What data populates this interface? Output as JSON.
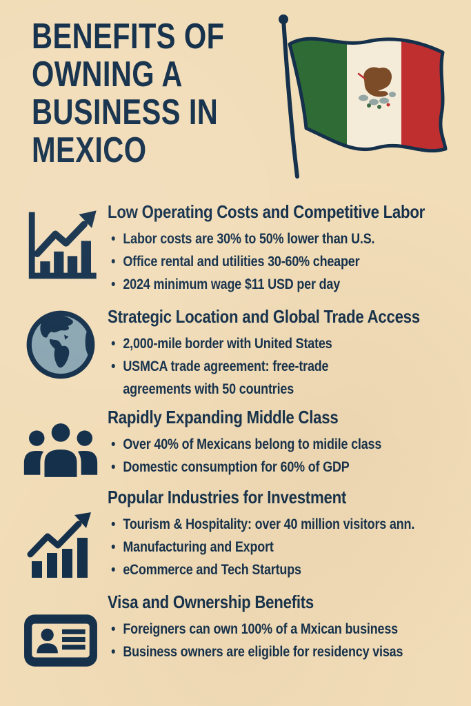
{
  "colors": {
    "background": "#f2ddb9",
    "navy": "#14304b",
    "flag_green": "#2e6b35",
    "flag_red": "#c02f2f",
    "flag_white": "#f4ecd9",
    "eagle_brown": "#7c4b28",
    "wreath_gray": "#93a6a4",
    "wreath_green": "#3d6b44",
    "globe_ocean": "#8ba6b2"
  },
  "title": {
    "lines": [
      "BENEFITS OF",
      "OWNING A",
      "BUSINESS IN",
      "MEXICO"
    ]
  },
  "flag": {
    "name": "mexico-flag"
  },
  "sections": [
    {
      "icon": "bar-chart-axis-growth-icon",
      "heading": "Low Operating Costs and Competitive Labor",
      "bullets": [
        "Labor costs are 30% to 50% lower than U.S.",
        "Office rental and utilities 30-60% cheaper",
        "2024 minimum wage $11 USD per day"
      ]
    },
    {
      "icon": "globe-icon",
      "heading": "Strategic Location and Global Trade Access",
      "bullets": [
        "2,000-mile border with United States",
        "USMCA trade agreement: free-trade agreements with 50 countries"
      ]
    },
    {
      "icon": "people-group-icon",
      "heading": "Rapidly Expanding Middle Class",
      "bullets": [
        "Over 40% of Mexicans belong to midile class",
        "Domestic consumption for 60% of GDP"
      ]
    },
    {
      "icon": "bar-chart-growth-icon",
      "heading": "Popular Industries for Investment",
      "bullets": [
        "Tourism & Hospitality: over 40 million visitors ann.",
        "Manufacturing and Export",
        "eCommerce and Tech Startups"
      ]
    },
    {
      "icon": "id-card-icon",
      "heading": "Visa and Ownership Benefits",
      "bullets": [
        "Foreigners can own 100% of a Mxican business",
        "Business owners are eligible for residency visas"
      ]
    }
  ],
  "bullet_glyph": "•"
}
